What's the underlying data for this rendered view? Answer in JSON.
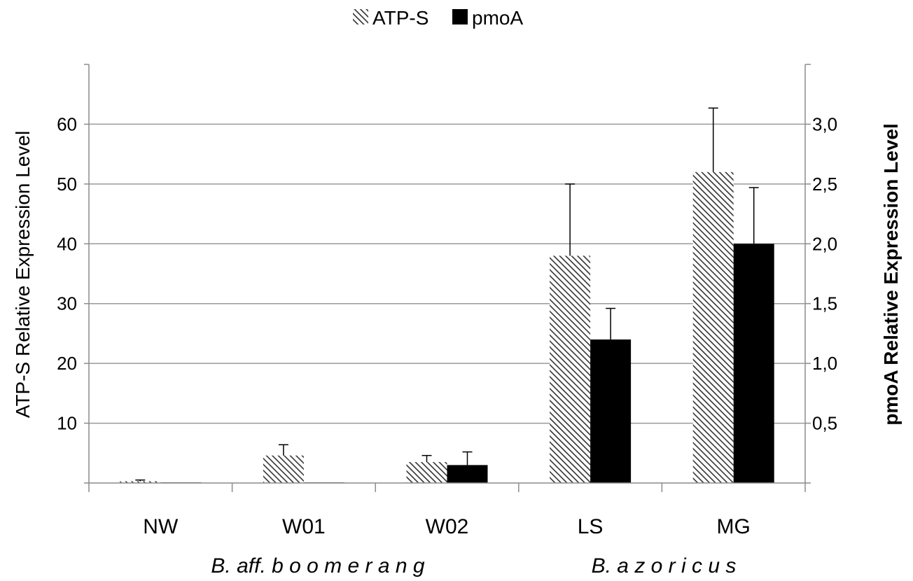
{
  "chart_data": {
    "type": "bar",
    "categories": [
      "NW",
      "W01",
      "W02",
      "LS",
      "MG"
    ],
    "series": [
      {
        "name": "ATP-S",
        "axis": "left",
        "pattern": "diagonal-hatch",
        "color": "#333333",
        "values": [
          0.3,
          4.6,
          3.5,
          38.0,
          52.0
        ],
        "errors": [
          0.2,
          1.8,
          1.1,
          12.0,
          10.7
        ]
      },
      {
        "name": "pmoA",
        "axis": "right",
        "pattern": "solid",
        "color": "#000000",
        "values": [
          0.005,
          0.005,
          0.15,
          1.2,
          2.0
        ],
        "errors": [
          0.0,
          0.0,
          0.11,
          0.26,
          0.47
        ]
      }
    ],
    "y_left": {
      "label": "ATP-S Relative Expression Level",
      "range": [
        0,
        70
      ],
      "ticks": [
        10,
        20,
        30,
        40,
        50,
        60
      ],
      "tick_labels": [
        "10",
        "20",
        "30",
        "40",
        "50",
        "60"
      ]
    },
    "y_right": {
      "label": "pmoA Relative Expression Level",
      "range": [
        0,
        3.5
      ],
      "ticks": [
        0.5,
        1.0,
        1.5,
        2.0,
        2.5,
        3.0
      ],
      "tick_labels": [
        "0,5",
        "1,0",
        "1,5",
        "2,0",
        "2,5",
        "3,0"
      ]
    },
    "groups": [
      {
        "label": "B.  aff. b o o m e r a n g",
        "categories": [
          "NW",
          "W01",
          "W02"
        ]
      },
      {
        "label": "B.  a z o r i c u s",
        "categories": [
          "LS",
          "MG"
        ]
      }
    ],
    "legend": {
      "position": "top-center",
      "entries": [
        "ATP-S",
        "pmoA"
      ]
    },
    "grid": "horizontal"
  }
}
